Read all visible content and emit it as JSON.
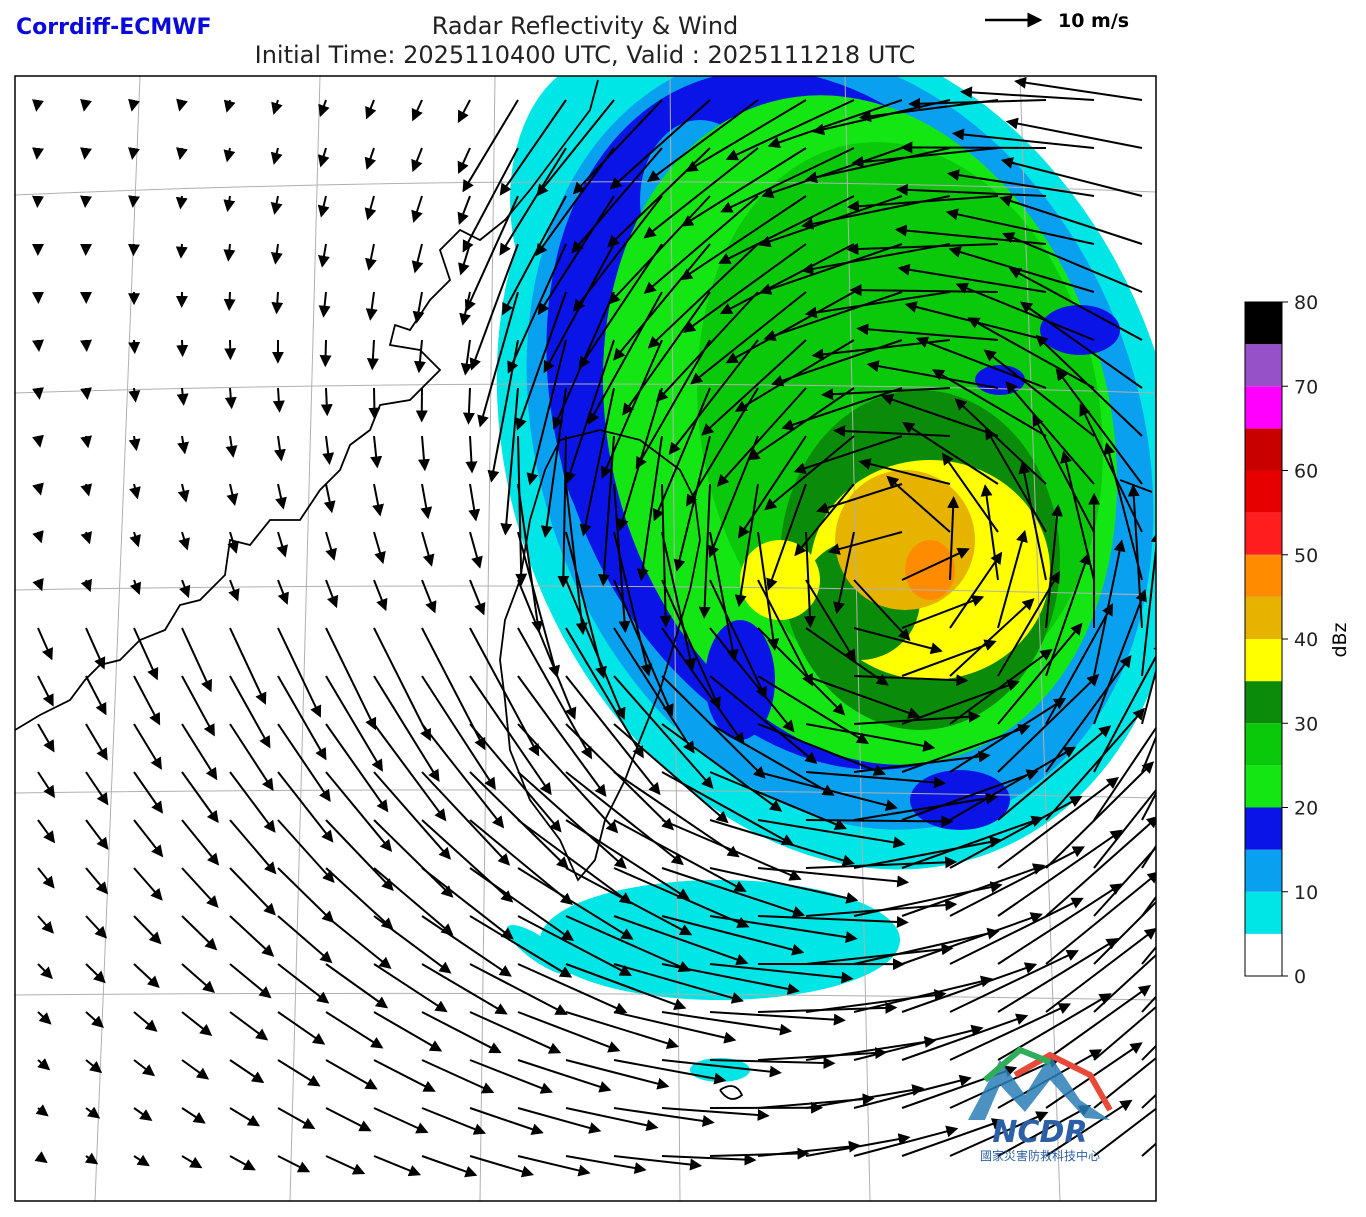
{
  "header": {
    "model": "Corrdiff-ECMWF",
    "title": "Radar Reflectivity & Wind",
    "subtitle": "Initial Time: 2025110400 UTC, Valid : 2025111218 UTC"
  },
  "wind_key": {
    "label": "10 m/s"
  },
  "colorbar": {
    "label": "dBz",
    "bounds": [
      0,
      5,
      10,
      15,
      20,
      25,
      30,
      35,
      40,
      45,
      50,
      55,
      60,
      65,
      70,
      75,
      80
    ],
    "colors": [
      "#ffffff",
      "#00e5e5",
      "#0aa0f0",
      "#0a14e6",
      "#14e614",
      "#0ac80a",
      "#0a8c0a",
      "#ffff00",
      "#e6b400",
      "#ff8c00",
      "#ff1e1e",
      "#e60000",
      "#c80000",
      "#ff00ff",
      "#9650c8",
      "#000000"
    ],
    "ticks": [
      0,
      10,
      20,
      30,
      40,
      50,
      60,
      70,
      80
    ]
  },
  "logo": {
    "acronym": "NCDR",
    "name": "國家災害防救科技中心"
  }
}
